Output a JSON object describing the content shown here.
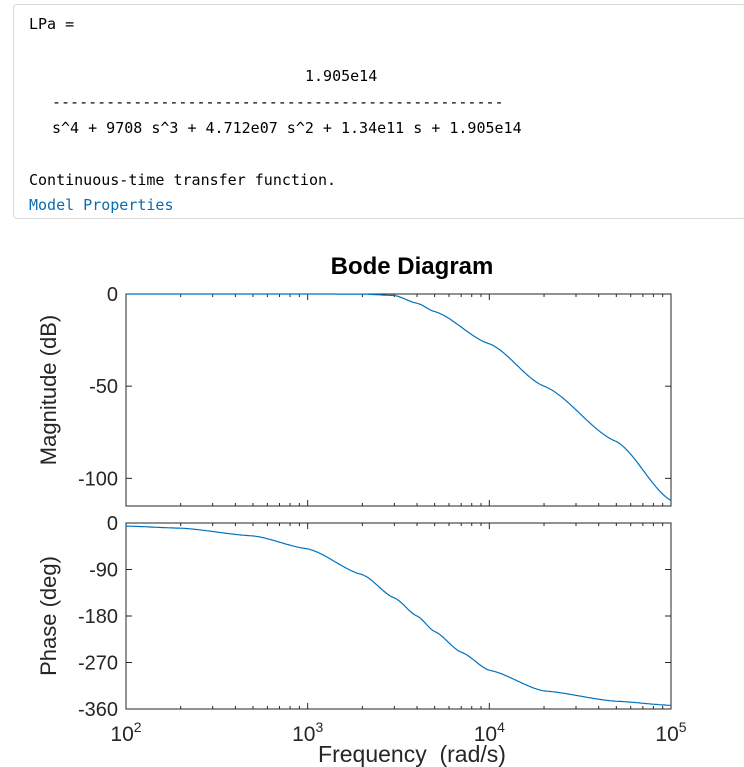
{
  "output": {
    "assignment": "LPa =",
    "numerator": "1.905e14",
    "fraction_bar": "--------------------------------------------------",
    "denominator": "s^4 + 9708 s^3 + 4.712e07 s^2 + 1.34e11 s + 1.905e14",
    "description": "Continuous-time transfer function.",
    "model_properties_link": "Model Properties"
  },
  "chart_data": {
    "type": "line",
    "title": "Bode Diagram",
    "xlabel": "Frequency  (rad/s)",
    "x_scale": "log",
    "xlim": [
      100,
      100000
    ],
    "x_ticks": [
      {
        "value": 100,
        "base": "10",
        "exp": "2"
      },
      {
        "value": 1000,
        "base": "10",
        "exp": "3"
      },
      {
        "value": 10000,
        "base": "10",
        "exp": "4"
      },
      {
        "value": 100000,
        "base": "10",
        "exp": "5"
      }
    ],
    "line_color": "#0072bd",
    "magnitude": {
      "ylabel": "Magnitude (dB)",
      "ylim": [
        -115,
        0
      ],
      "yticks": [
        "0",
        "-50",
        "-100"
      ],
      "ytick_values": [
        0,
        -50,
        -100
      ],
      "points": [
        [
          100,
          0
        ],
        [
          1000,
          0
        ],
        [
          2000,
          -0.05
        ],
        [
          3000,
          -0.8
        ],
        [
          4000,
          -5
        ],
        [
          5000,
          -9.5
        ],
        [
          10000,
          -27
        ],
        [
          20000,
          -50
        ],
        [
          50000,
          -80
        ],
        [
          100000,
          -112
        ]
      ]
    },
    "phase": {
      "ylabel": "Phase (deg)",
      "ylim": [
        -360,
        0
      ],
      "yticks": [
        "0",
        "-90",
        "-180",
        "-270",
        "-360"
      ],
      "ytick_values": [
        0,
        -90,
        -180,
        -270,
        -360
      ],
      "points": [
        [
          100,
          -6
        ],
        [
          200,
          -10
        ],
        [
          500,
          -25
        ],
        [
          1000,
          -50
        ],
        [
          2000,
          -100
        ],
        [
          3000,
          -145
        ],
        [
          4000,
          -180
        ],
        [
          5000,
          -210
        ],
        [
          7000,
          -250
        ],
        [
          10000,
          -285
        ],
        [
          20000,
          -325
        ],
        [
          50000,
          -345
        ],
        [
          100000,
          -353
        ]
      ]
    }
  }
}
